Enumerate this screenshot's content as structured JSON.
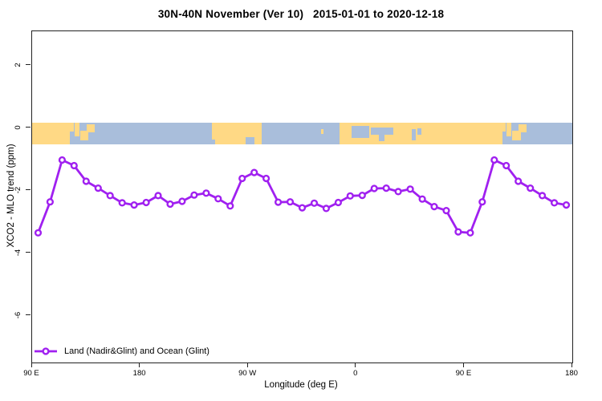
{
  "title": "30N-40N November (Ver 10)   2015-01-01 to 2020-12-18",
  "legend": {
    "label": "Land (Nadir&Glint) and Ocean (Glint)"
  },
  "axes": {
    "x": {
      "label": "Longitude (deg E)"
    },
    "y": {
      "label": "XCO2 - MLO trend (ppm)"
    }
  },
  "colors": {
    "series": "#A020F0",
    "marker_fill": "#FFFFFF",
    "land": "#FFD985",
    "ocean": "#A9BEDB",
    "axis": "#222222",
    "background": "#FFFFFF"
  },
  "chart_data": {
    "type": "line",
    "title": "30N-40N November (Ver 10)   2015-01-01 to 2020-12-18",
    "xlabel": "Longitude (deg E)",
    "ylabel": "XCO2 - MLO trend (ppm)",
    "xlim": [
      90,
      540
    ],
    "ylim": [
      -7.5,
      3.1
    ],
    "grid": false,
    "legend_position": "bottom-left-inside",
    "x_ticks": [
      {
        "pos": 90,
        "label": "90 E"
      },
      {
        "pos": 180,
        "label": "180"
      },
      {
        "pos": 270,
        "label": "90 W"
      },
      {
        "pos": 360,
        "label": "0"
      },
      {
        "pos": 450,
        "label": "90 E"
      },
      {
        "pos": 540,
        "label": "180"
      }
    ],
    "y_ticks": [
      {
        "pos": 2,
        "label": "2"
      },
      {
        "pos": 0,
        "label": "0"
      },
      {
        "pos": -2,
        "label": "-2"
      },
      {
        "pos": -4,
        "label": "-4"
      },
      {
        "pos": -6,
        "label": "-6"
      }
    ],
    "series": [
      {
        "name": "Land (Nadir&Glint) and Ocean (Glint)",
        "color": "#A020F0",
        "marker": "open-circle",
        "x": [
          95,
          105,
          115,
          125,
          135,
          145,
          155,
          165,
          175,
          185,
          195,
          205,
          215,
          225,
          235,
          245,
          255,
          265,
          275,
          285,
          295,
          305,
          315,
          325,
          335,
          345,
          355,
          365,
          375,
          385,
          395,
          405,
          415,
          425,
          435,
          445,
          455,
          465,
          475,
          485,
          495,
          505,
          515,
          525,
          535
        ],
        "y": [
          -3.35,
          -2.36,
          -1.02,
          -1.2,
          -1.7,
          -1.92,
          -2.16,
          -2.39,
          -2.46,
          -2.38,
          -2.16,
          -2.43,
          -2.34,
          -2.14,
          -2.08,
          -2.26,
          -2.49,
          -1.61,
          -1.42,
          -1.61,
          -2.37,
          -2.36,
          -2.55,
          -2.4,
          -2.57,
          -2.38,
          -2.17,
          -2.15,
          -1.93,
          -1.92,
          -2.03,
          -1.95,
          -2.27,
          -2.51,
          -2.64,
          -3.32,
          -3.35,
          -2.36,
          -1.02,
          -1.2,
          -1.7,
          -1.92,
          -2.16,
          -2.39,
          -2.46
        ]
      }
    ],
    "map_strip": {
      "description": "world coastline band 30N-40N drawn across plot near y=0",
      "value_top": 0.17,
      "value_bottom": -0.53,
      "land_color": "#FFD985",
      "ocean_color": "#A9BEDB",
      "land": [
        [
          90,
          121.5,
          0,
          1
        ],
        [
          121.5,
          124.5,
          0,
          0.4
        ],
        [
          125.5,
          129.5,
          0,
          0.6
        ],
        [
          130,
          137,
          0.35,
          0.8
        ],
        [
          135.5,
          142,
          0.05,
          0.45
        ],
        [
          240,
          281.5,
          0,
          1
        ],
        [
          331,
          333,
          0.3,
          0.5
        ],
        [
          346,
          481.5,
          0,
          1
        ],
        [
          481.5,
          484.5,
          0,
          0.4
        ],
        [
          485.5,
          489.5,
          0,
          0.6
        ],
        [
          490,
          497,
          0.35,
          0.8
        ],
        [
          495.5,
          502,
          0.05,
          0.45
        ]
      ],
      "water": [
        [
          122,
          125.5,
          0.4,
          1
        ],
        [
          240,
          242.5,
          0.78,
          1
        ],
        [
          268,
          275.5,
          0.65,
          1
        ],
        [
          356,
          371,
          0.15,
          0.7
        ],
        [
          372,
          391,
          0.2,
          0.55
        ],
        [
          379,
          383.5,
          0.55,
          0.85
        ],
        [
          406,
          409.5,
          0.3,
          0.8
        ],
        [
          411,
          414,
          0.25,
          0.55
        ],
        [
          482,
          485.5,
          0.4,
          1
        ]
      ]
    }
  }
}
